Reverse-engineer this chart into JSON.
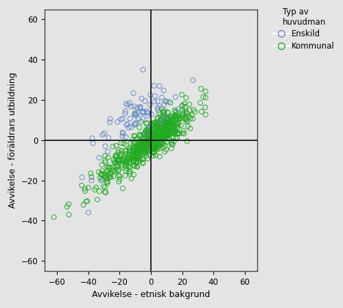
{
  "xlabel": "Avvikelse - etnisk bakgrund",
  "ylabel": "Avvikelse - föräldrars utbildning",
  "legend_title": "Typ av\nhuvudman",
  "legend_labels": [
    "Enskild",
    "Kommunal"
  ],
  "xlim": [
    -68,
    68
  ],
  "ylim": [
    -65,
    65
  ],
  "xticks": [
    -60,
    -40,
    -20,
    0,
    20,
    40,
    60
  ],
  "yticks": [
    -60,
    -40,
    -20,
    0,
    20,
    40,
    60
  ],
  "color_enskild": "#6688CC",
  "color_kommunal": "#22AA22",
  "bg_color": "#E4E4E4",
  "marker_size": 5,
  "seed": 12345,
  "n_enskild": 75,
  "n_kommunal": 700
}
